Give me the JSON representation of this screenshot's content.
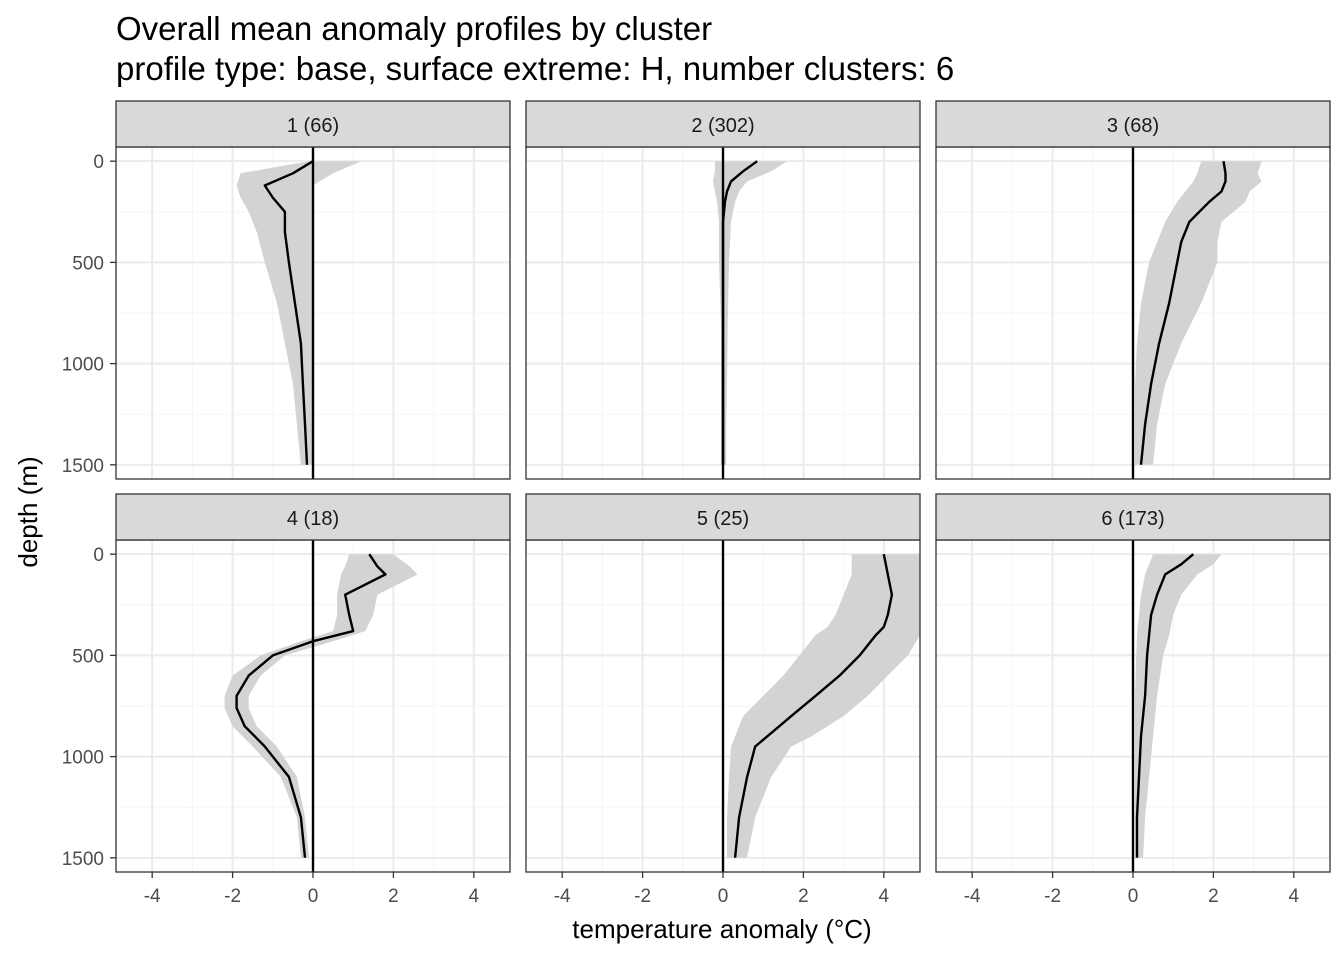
{
  "title": "Overall mean anomaly profiles by cluster",
  "subtitle": "profile type: base, surface extreme: H, number clusters: 6",
  "chart_data": {
    "type": "line",
    "title": "Overall mean anomaly profiles by cluster",
    "subtitle": "profile type: base, surface extreme: H, number clusters: 6",
    "xlabel": "temperature anomaly (°C)",
    "ylabel": "depth (m)",
    "xlim": [
      -4.9,
      4.9
    ],
    "ylim": [
      1570,
      -70
    ],
    "y_reversed": true,
    "x_ticks": [
      -4,
      -2,
      0,
      2,
      4
    ],
    "x_tick_labels": [
      "-4",
      "-2",
      "0",
      "2",
      "4"
    ],
    "y_ticks": [
      0,
      500,
      1000,
      1500
    ],
    "y_tick_labels": [
      "0",
      "500",
      "1000",
      "1500"
    ],
    "grid": true,
    "reference_line_x": 0,
    "facet_layout": [
      2,
      3
    ],
    "colors": {
      "line": "#000000",
      "ribbon": "#d3d3d3",
      "strip": "#d9d9d9",
      "grid_major": "#ebebeb",
      "grid_minor": "#f5f5f5",
      "panel_border": "#333333"
    },
    "panels": [
      {
        "label": "1 (66)",
        "depth": [
          0,
          60,
          120,
          180,
          250,
          350,
          500,
          700,
          900,
          1100,
          1300,
          1500
        ],
        "mean": [
          0.0,
          -0.5,
          -1.2,
          -1.0,
          -0.7,
          -0.7,
          -0.6,
          -0.45,
          -0.3,
          -0.25,
          -0.2,
          -0.15
        ],
        "lower": [
          -0.1,
          -1.8,
          -1.9,
          -1.8,
          -1.6,
          -1.4,
          -1.2,
          -0.9,
          -0.7,
          -0.5,
          -0.4,
          -0.3
        ],
        "upper": [
          1.2,
          0.5,
          0.0,
          0.0,
          0.0,
          0.0,
          0.0,
          0.0,
          0.0,
          0.0,
          0.0,
          0.0
        ]
      },
      {
        "label": "2 (302)",
        "depth": [
          0,
          50,
          100,
          150,
          200,
          300,
          500,
          800,
          1100,
          1300,
          1500
        ],
        "mean": [
          0.85,
          0.5,
          0.2,
          0.1,
          0.05,
          0.0,
          0.0,
          0.0,
          0.0,
          0.0,
          0.0
        ],
        "lower": [
          -0.2,
          -0.2,
          -0.25,
          -0.2,
          -0.15,
          -0.1,
          -0.1,
          -0.05,
          -0.05,
          -0.05,
          -0.05
        ],
        "upper": [
          1.6,
          1.2,
          0.6,
          0.4,
          0.3,
          0.2,
          0.15,
          0.12,
          0.1,
          0.08,
          0.08
        ]
      },
      {
        "label": "3 (68)",
        "depth": [
          0,
          60,
          100,
          150,
          200,
          300,
          400,
          500,
          700,
          900,
          1100,
          1300,
          1500
        ],
        "mean": [
          2.25,
          2.3,
          2.3,
          2.2,
          1.9,
          1.4,
          1.2,
          1.1,
          0.9,
          0.65,
          0.45,
          0.3,
          0.2
        ],
        "lower": [
          1.7,
          1.6,
          1.5,
          1.3,
          1.1,
          0.8,
          0.6,
          0.4,
          0.2,
          0.1,
          0.05,
          0.05,
          0.05
        ],
        "upper": [
          3.2,
          3.1,
          3.2,
          2.9,
          2.8,
          2.2,
          2.1,
          2.1,
          1.7,
          1.2,
          0.8,
          0.6,
          0.5
        ]
      },
      {
        "label": "4 (18)",
        "depth": [
          0,
          60,
          100,
          200,
          300,
          380,
          430,
          500,
          600,
          700,
          760,
          850,
          950,
          1100,
          1300,
          1500
        ],
        "mean": [
          1.4,
          1.6,
          1.8,
          0.8,
          0.9,
          1.0,
          0.0,
          -1.0,
          -1.6,
          -1.9,
          -1.9,
          -1.7,
          -1.2,
          -0.6,
          -0.3,
          -0.2
        ],
        "lower": [
          0.9,
          0.8,
          0.7,
          0.6,
          0.6,
          0.5,
          -0.3,
          -1.3,
          -2.0,
          -2.2,
          -2.2,
          -2.0,
          -1.5,
          -0.8,
          -0.4,
          -0.3
        ],
        "upper": [
          2.0,
          2.4,
          2.6,
          1.6,
          1.5,
          1.3,
          0.5,
          -0.7,
          -1.3,
          -1.6,
          -1.6,
          -1.4,
          -0.9,
          -0.4,
          -0.2,
          -0.1
        ]
      },
      {
        "label": "5 (25)",
        "depth": [
          0,
          100,
          200,
          300,
          360,
          400,
          500,
          600,
          700,
          800,
          900,
          950,
          1100,
          1300,
          1500
        ],
        "mean": [
          4.0,
          4.1,
          4.2,
          4.1,
          4.0,
          3.8,
          3.4,
          2.9,
          2.3,
          1.7,
          1.1,
          0.8,
          0.6,
          0.4,
          0.3
        ],
        "lower": [
          3.2,
          3.2,
          3.0,
          2.8,
          2.6,
          2.3,
          1.9,
          1.5,
          1.0,
          0.5,
          0.3,
          0.2,
          0.15,
          0.1,
          0.1
        ],
        "upper": [
          4.9,
          4.9,
          4.9,
          4.9,
          4.9,
          4.9,
          4.6,
          4.1,
          3.6,
          3.0,
          2.2,
          1.7,
          1.2,
          0.8,
          0.6
        ]
      },
      {
        "label": "6 (173)",
        "depth": [
          0,
          50,
          100,
          200,
          300,
          400,
          500,
          700,
          900,
          1100,
          1300,
          1500
        ],
        "mean": [
          1.5,
          1.2,
          0.8,
          0.6,
          0.45,
          0.4,
          0.35,
          0.3,
          0.2,
          0.15,
          0.1,
          0.1
        ],
        "lower": [
          0.5,
          0.4,
          0.3,
          0.2,
          0.15,
          0.1,
          0.08,
          0.05,
          0.05,
          0.05,
          0.05,
          0.05
        ],
        "upper": [
          2.2,
          2.0,
          1.6,
          1.2,
          1.0,
          0.9,
          0.75,
          0.6,
          0.5,
          0.4,
          0.3,
          0.25
        ]
      }
    ]
  }
}
